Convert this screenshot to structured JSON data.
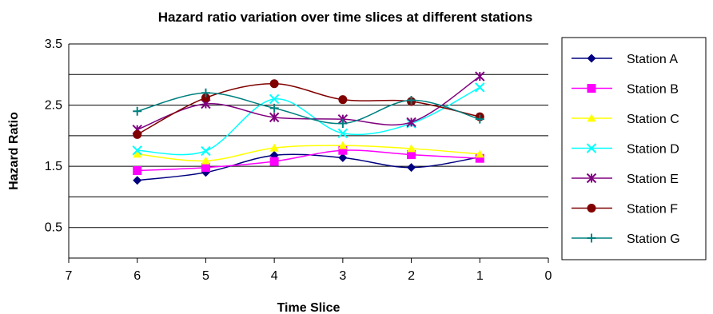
{
  "chart_data": {
    "type": "line",
    "title": "Hazard ratio variation over time slices at different stations",
    "xlabel": "Time Slice",
    "ylabel": "Hazard Ratio",
    "xlim": [
      7,
      0
    ],
    "ylim": [
      0,
      3.5
    ],
    "x_ticks": [
      7,
      6,
      5,
      4,
      3,
      2,
      1,
      0
    ],
    "y_tick_labels": [
      0.5,
      1.5,
      2.5,
      3.5
    ],
    "y_gridlines": [
      0.5,
      1,
      1.5,
      2,
      2.5,
      3,
      3.5
    ],
    "grid": true,
    "legend_position": "right",
    "x": [
      6,
      5,
      4,
      3,
      2,
      1
    ],
    "series": [
      {
        "name": "Station A",
        "color": "#000080",
        "marker": "diamond",
        "values": [
          1.27,
          1.4,
          1.68,
          1.64,
          1.48,
          1.65
        ]
      },
      {
        "name": "Station B",
        "color": "#FF00FF",
        "marker": "square",
        "values": [
          1.43,
          1.48,
          1.58,
          1.76,
          1.69,
          1.63
        ]
      },
      {
        "name": "Station C",
        "color": "#FFFF00",
        "marker": "triangle",
        "values": [
          1.7,
          1.59,
          1.8,
          1.84,
          1.79,
          1.7
        ]
      },
      {
        "name": "Station D",
        "color": "#00FFFF",
        "marker": "x",
        "values": [
          1.76,
          1.75,
          2.6,
          2.04,
          2.2,
          2.79
        ]
      },
      {
        "name": "Station E",
        "color": "#800080",
        "marker": "star",
        "values": [
          2.1,
          2.52,
          2.3,
          2.27,
          2.22,
          2.97
        ]
      },
      {
        "name": "Station F",
        "color": "#800000",
        "marker": "circle",
        "values": [
          2.02,
          2.62,
          2.85,
          2.59,
          2.56,
          2.31
        ]
      },
      {
        "name": "Station G",
        "color": "#008080",
        "marker": "plus",
        "values": [
          2.4,
          2.7,
          2.45,
          2.2,
          2.58,
          2.27
        ]
      }
    ]
  }
}
